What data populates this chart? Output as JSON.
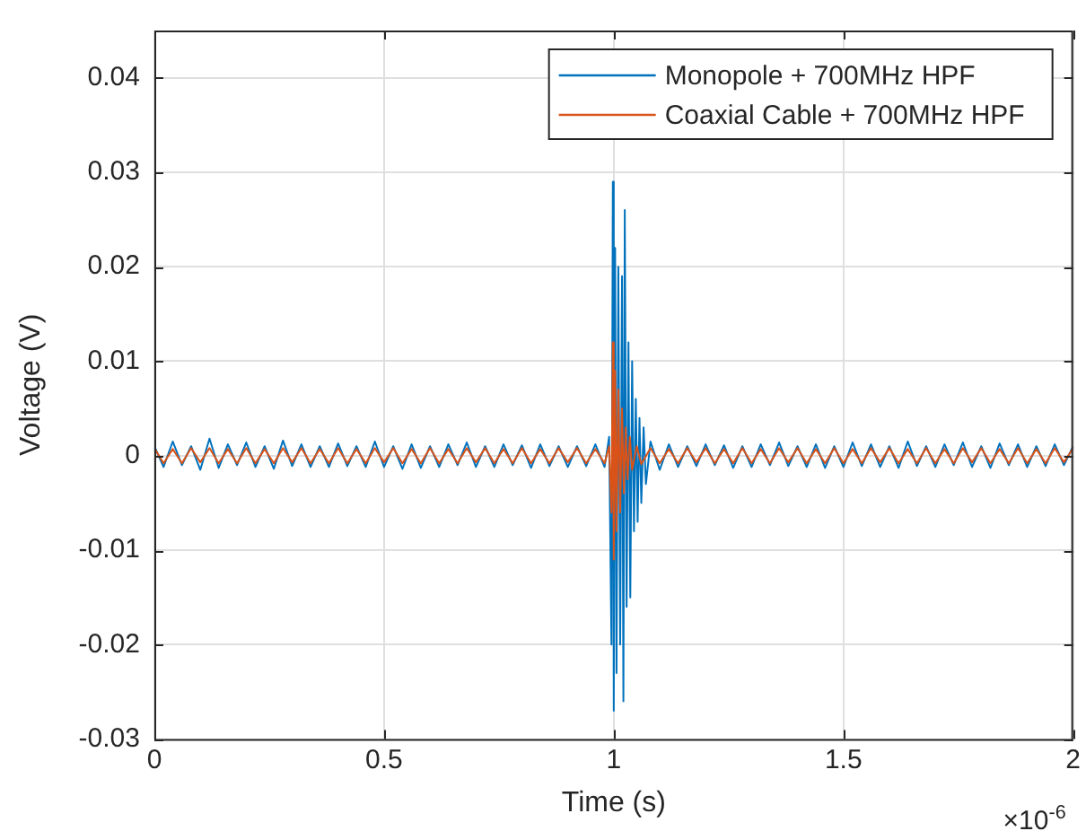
{
  "chart_data": {
    "type": "line",
    "xlabel": "Time (s)",
    "ylabel": "Voltage (V)",
    "xlim": [
      0,
      2
    ],
    "xticks": [
      0,
      0.5,
      1,
      1.5,
      2
    ],
    "ylim": [
      -0.03,
      0.045
    ],
    "yticks": [
      -0.03,
      -0.02,
      -0.01,
      0,
      0.01,
      0.02,
      0.03,
      0.04
    ],
    "grid": true,
    "legend": "top right",
    "marker": "none",
    "line_style": "solid",
    "annotations": [
      "×10$^{-6}$"
    ],
    "series": [
      {
        "name": "Monopole + 700MHz HPF",
        "color": "#0072bd",
        "x": [
          0,
          0.02,
          0.04,
          0.06,
          0.08,
          0.1,
          0.12,
          0.14,
          0.16,
          0.18,
          0.2,
          0.22,
          0.24,
          0.26,
          0.28,
          0.3,
          0.32,
          0.34,
          0.36,
          0.38,
          0.4,
          0.42,
          0.44,
          0.46,
          0.48,
          0.5,
          0.52,
          0.54,
          0.56,
          0.58,
          0.6,
          0.62,
          0.64,
          0.66,
          0.68,
          0.7,
          0.72,
          0.74,
          0.76,
          0.78,
          0.8,
          0.82,
          0.84,
          0.86,
          0.88,
          0.9,
          0.92,
          0.94,
          0.96,
          0.98,
          0.99,
          0.995,
          0.998,
          1,
          1.003,
          1.006,
          1.01,
          1.014,
          1.018,
          1.021,
          1.024,
          1.028,
          1.032,
          1.036,
          1.04,
          1.044,
          1.048,
          1.052,
          1.056,
          1.06,
          1.065,
          1.07,
          1.08,
          1.1,
          1.12,
          1.14,
          1.16,
          1.18,
          1.2,
          1.22,
          1.24,
          1.26,
          1.28,
          1.3,
          1.32,
          1.34,
          1.36,
          1.38,
          1.4,
          1.42,
          1.44,
          1.46,
          1.48,
          1.5,
          1.52,
          1.54,
          1.56,
          1.58,
          1.6,
          1.62,
          1.64,
          1.66,
          1.68,
          1.7,
          1.72,
          1.74,
          1.76,
          1.78,
          1.8,
          1.82,
          1.84,
          1.86,
          1.88,
          1.9,
          1.92,
          1.94,
          1.96,
          1.98,
          2
        ],
        "values": [
          0.001,
          -0.0012,
          0.0015,
          -0.001,
          0.001,
          -0.0015,
          0.0018,
          -0.0013,
          0.0012,
          -0.001,
          0.0014,
          -0.0012,
          0.001,
          -0.0014,
          0.0016,
          -0.0011,
          0.0012,
          -0.0012,
          0.001,
          -0.0012,
          0.0013,
          -0.0011,
          0.001,
          -0.0012,
          0.0015,
          -0.0012,
          0.001,
          -0.0014,
          0.0012,
          -0.0013,
          0.001,
          -0.0012,
          0.0012,
          -0.001,
          0.0014,
          -0.0012,
          0.001,
          -0.0012,
          0.0012,
          -0.001,
          0.0011,
          -0.0013,
          0.0012,
          -0.0011,
          0.001,
          -0.0012,
          0.001,
          -0.0011,
          0.0012,
          -0.0012,
          0.002,
          -0.02,
          0.029,
          -0.027,
          0.022,
          -0.023,
          0.02,
          -0.02,
          0.019,
          -0.026,
          0.026,
          -0.016,
          0.012,
          -0.015,
          0.01,
          -0.008,
          0.006,
          -0.007,
          0.004,
          -0.005,
          0.003,
          -0.003,
          0.0015,
          -0.0015,
          0.0012,
          -0.0012,
          0.001,
          -0.0011,
          0.0012,
          -0.001,
          0.0011,
          -0.0013,
          0.001,
          -0.0012,
          0.0012,
          -0.001,
          0.0014,
          -0.0011,
          0.001,
          -0.0012,
          0.0012,
          -0.0013,
          0.001,
          -0.0012,
          0.0014,
          -0.0011,
          0.0012,
          -0.0012,
          0.001,
          -0.0013,
          0.0015,
          -0.0011,
          0.001,
          -0.0012,
          0.0012,
          -0.001,
          0.0014,
          -0.0012,
          0.001,
          -0.0013,
          0.0013,
          -0.001,
          0.0012,
          -0.0012,
          0.001,
          -0.0011,
          0.0012,
          -0.001,
          0.001
        ]
      },
      {
        "name": "Coaxial Cable + 700MHz HPF",
        "color": "#d95319",
        "x": [
          0,
          0.02,
          0.04,
          0.06,
          0.08,
          0.1,
          0.12,
          0.14,
          0.16,
          0.18,
          0.2,
          0.22,
          0.24,
          0.26,
          0.28,
          0.3,
          0.32,
          0.34,
          0.36,
          0.38,
          0.4,
          0.42,
          0.44,
          0.46,
          0.48,
          0.5,
          0.52,
          0.54,
          0.56,
          0.58,
          0.6,
          0.62,
          0.64,
          0.66,
          0.68,
          0.7,
          0.72,
          0.74,
          0.76,
          0.78,
          0.8,
          0.82,
          0.84,
          0.86,
          0.88,
          0.9,
          0.92,
          0.94,
          0.96,
          0.98,
          0.99,
          0.995,
          0.998,
          1,
          1.003,
          1.006,
          1.01,
          1.014,
          1.018,
          1.022,
          1.026,
          1.03,
          1.035,
          1.04,
          1.05,
          1.06,
          1.08,
          1.1,
          1.12,
          1.14,
          1.16,
          1.18,
          1.2,
          1.22,
          1.24,
          1.26,
          1.28,
          1.3,
          1.32,
          1.34,
          1.36,
          1.38,
          1.4,
          1.42,
          1.44,
          1.46,
          1.48,
          1.5,
          1.52,
          1.54,
          1.56,
          1.58,
          1.6,
          1.62,
          1.64,
          1.66,
          1.68,
          1.7,
          1.72,
          1.74,
          1.76,
          1.78,
          1.8,
          1.82,
          1.84,
          1.86,
          1.88,
          1.9,
          1.92,
          1.94,
          1.96,
          1.98,
          2
        ],
        "values": [
          0.0008,
          -0.0008,
          0.0007,
          -0.0008,
          0.0008,
          -0.0007,
          0.0008,
          -0.0008,
          0.0007,
          -0.0008,
          0.0008,
          -0.0008,
          0.0007,
          -0.0008,
          0.0008,
          -0.0007,
          0.0008,
          -0.0008,
          0.0007,
          -0.0008,
          0.0008,
          -0.0008,
          0.0007,
          -0.0008,
          0.0008,
          -0.0007,
          0.0008,
          -0.0008,
          0.0007,
          -0.0008,
          0.0008,
          -0.0008,
          0.0007,
          -0.0008,
          0.0008,
          -0.0007,
          0.0008,
          -0.0008,
          0.0007,
          -0.0008,
          0.0008,
          -0.0008,
          0.0007,
          -0.0008,
          0.0008,
          -0.0007,
          0.0008,
          -0.0008,
          0.0007,
          -0.0008,
          0.001,
          -0.006,
          0.012,
          -0.011,
          0.009,
          -0.008,
          0.007,
          -0.006,
          0.005,
          -0.004,
          0.003,
          -0.0025,
          0.002,
          -0.0015,
          0.001,
          -0.0009,
          0.0008,
          -0.0008,
          0.0007,
          -0.0008,
          0.0008,
          -0.0007,
          0.0008,
          -0.0008,
          0.0007,
          -0.0008,
          0.0008,
          -0.0008,
          0.0007,
          -0.0008,
          0.0008,
          -0.0007,
          0.0008,
          -0.0008,
          0.0007,
          -0.0008,
          0.0008,
          -0.0008,
          0.0007,
          -0.0008,
          0.0008,
          -0.0007,
          0.0008,
          -0.0008,
          0.0007,
          -0.0008,
          0.0008,
          -0.0008,
          0.0007,
          -0.0008,
          0.0008,
          -0.0007,
          0.0008,
          -0.0008,
          0.0007,
          -0.0008,
          0.0008,
          -0.0008,
          0.0007,
          -0.0008,
          0.0008,
          -0.0007,
          0.0008
        ]
      }
    ]
  }
}
